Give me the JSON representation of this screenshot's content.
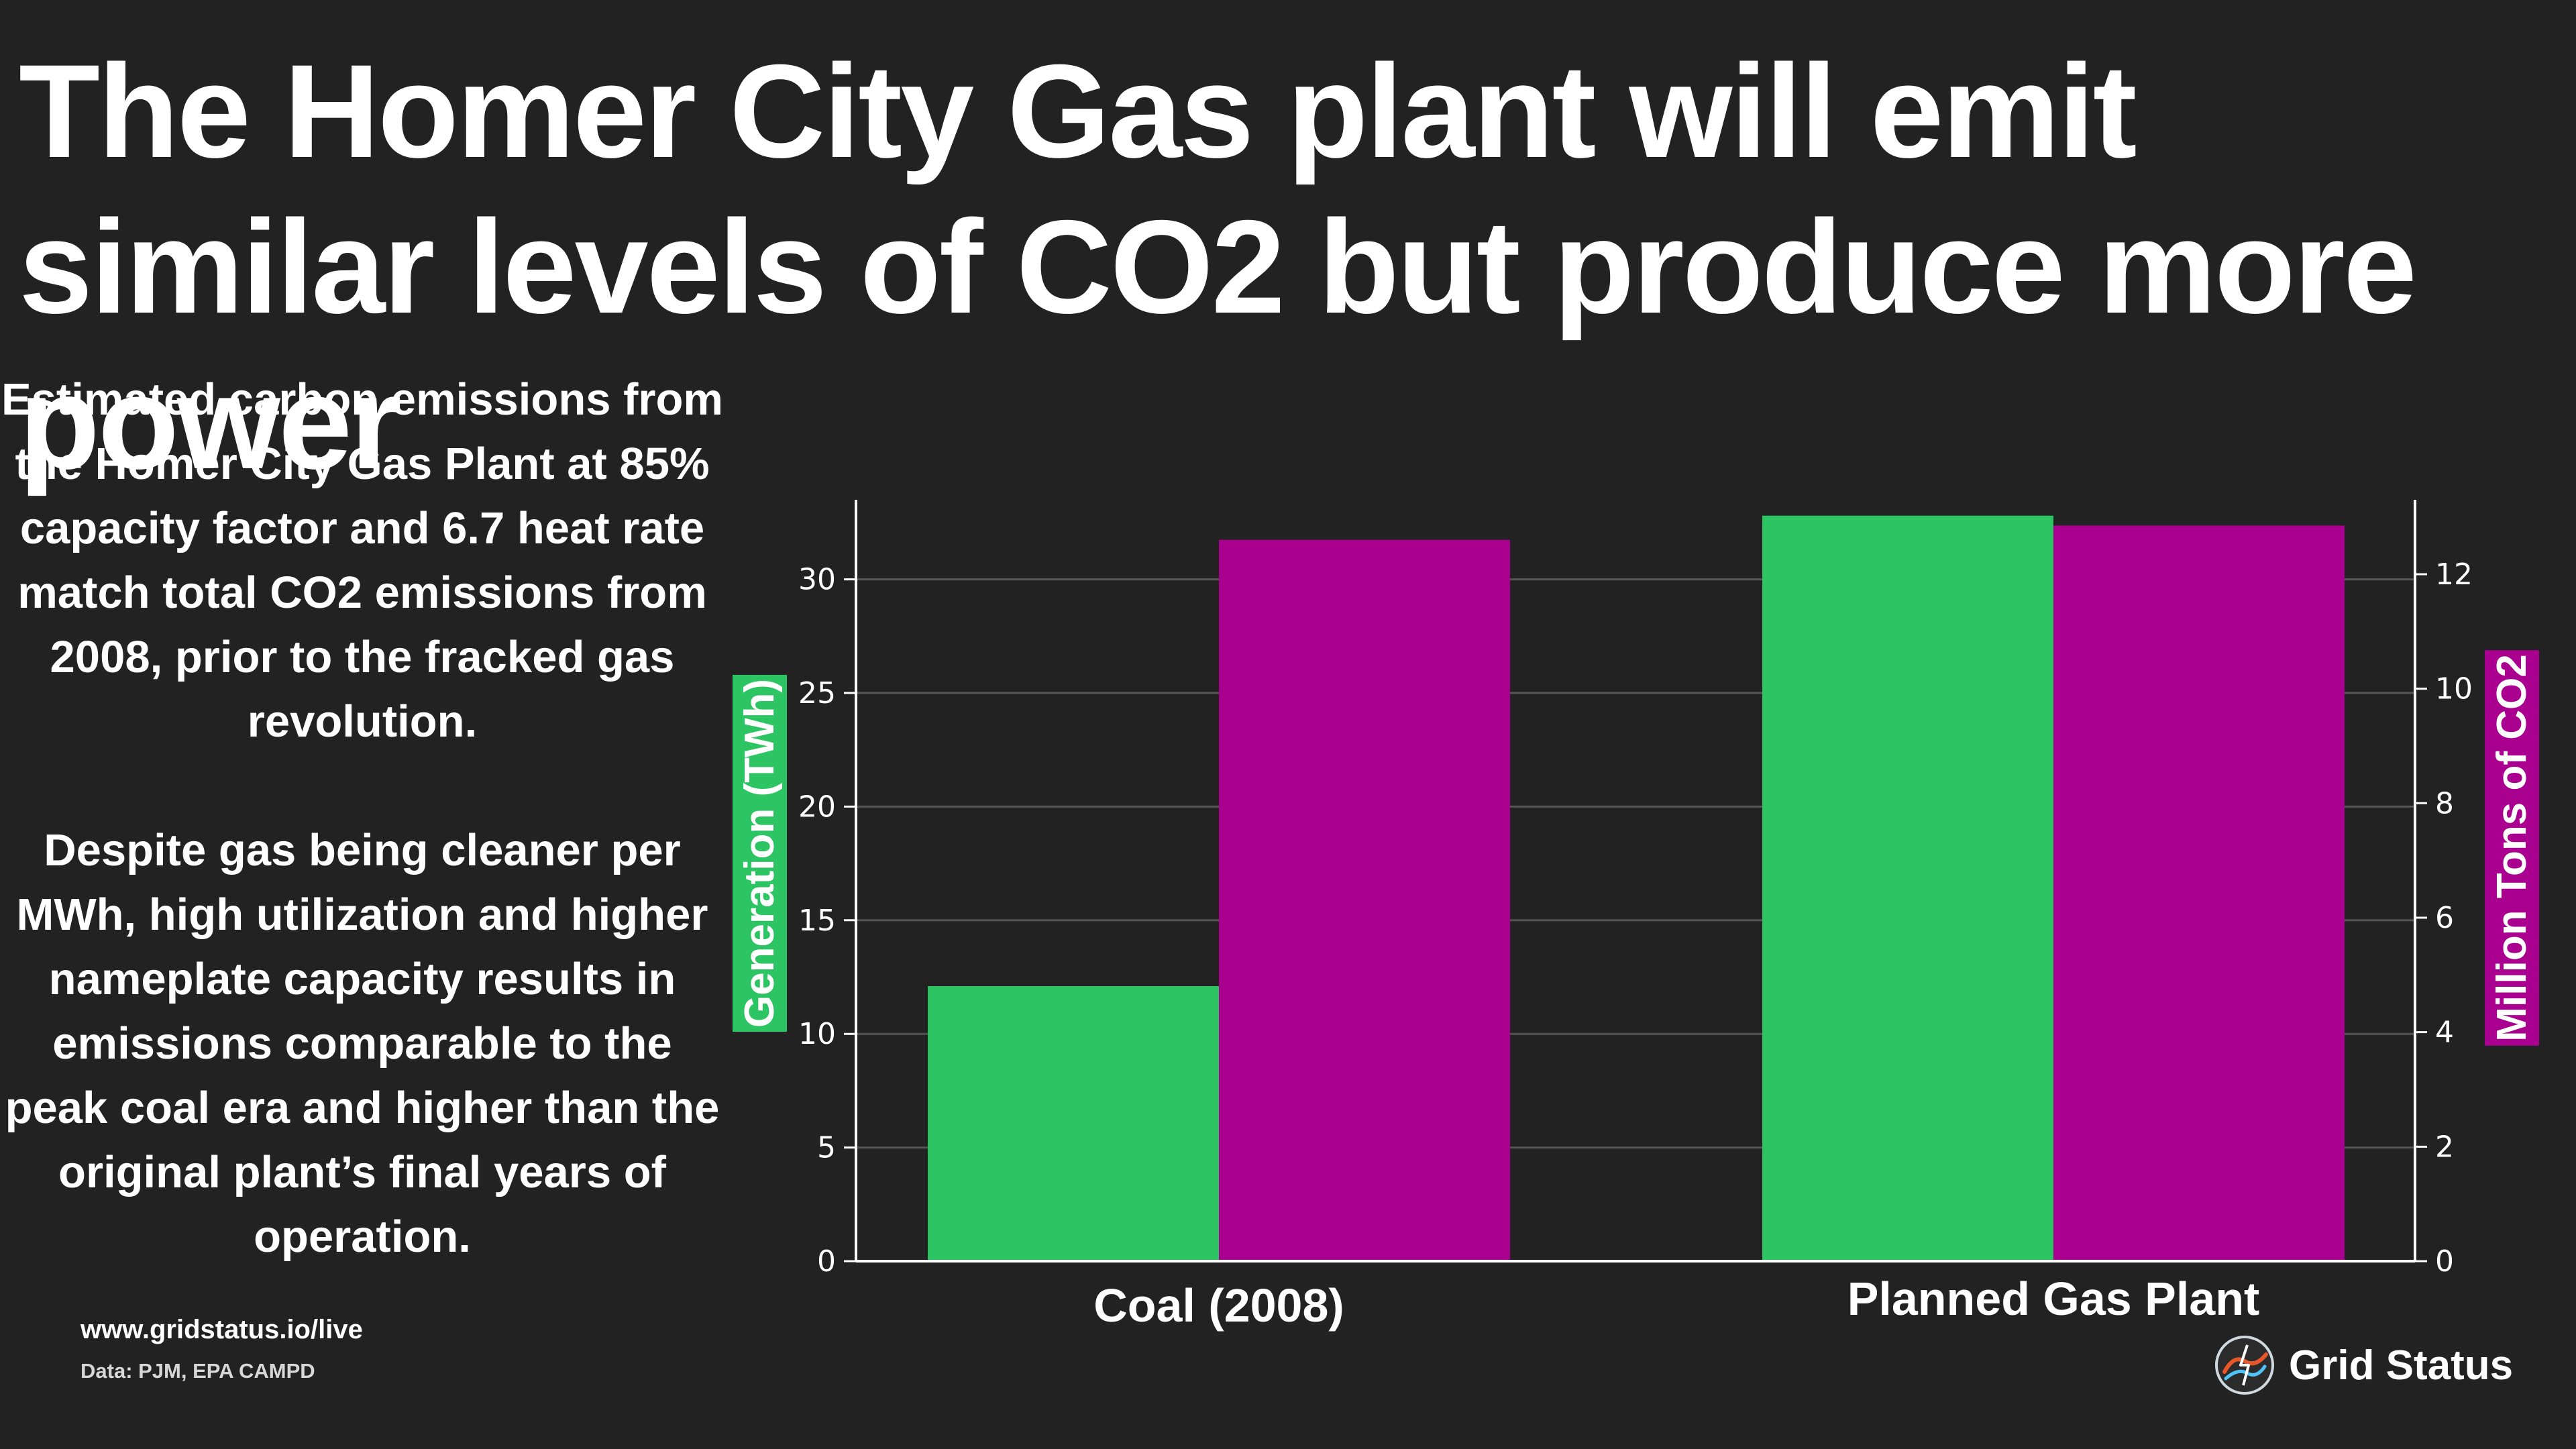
{
  "title": "The Homer City Gas plant will emit similar levels of CO2 but produce more power",
  "description": {
    "paragraph1": "Estimated carbon emissions from the Homer City Gas Plant at 85% capacity factor and 6.7 heat rate match total CO2 emissions from 2008, prior to the fracked gas revolution.",
    "paragraph2": "Despite gas being cleaner per MWh, high utilization and higher nameplate capacity results in emissions comparable to the peak coal era and higher than the original plant’s final years of operation."
  },
  "footer": {
    "url": "www.gridstatus.io/live",
    "source": "Data: PJM, EPA CAMPD",
    "brand": "Grid Status",
    "brand_icon": "grid-status-logo-icon"
  },
  "colors": {
    "background": "#222222",
    "generation": "#2DC563",
    "co2": "#A9008F",
    "grid": "#555555",
    "text": "#ffffff"
  },
  "chart_data": {
    "type": "bar",
    "categories": [
      "Coal (2008)",
      "Planned Gas Plant"
    ],
    "series": [
      {
        "name": "Generation (TWh)",
        "axis": "left",
        "values": [
          12.1,
          32.8
        ]
      },
      {
        "name": "Million Tons of CO2",
        "axis": "right",
        "values": [
          12.6,
          12.85
        ]
      }
    ],
    "y_left": {
      "label": "Generation (TWh)",
      "ylim": [
        0,
        33.5
      ],
      "ticks": [
        0,
        5,
        10,
        15,
        20,
        25,
        30
      ],
      "tick_labels": [
        "0",
        "5",
        "10",
        "15",
        "20",
        "25",
        "30"
      ]
    },
    "y_right": {
      "label": "Million Tons of CO2",
      "ylim": [
        0,
        13.3
      ],
      "ticks": [
        0,
        2,
        4,
        6,
        8,
        10,
        12
      ],
      "tick_labels": [
        "0",
        "2",
        "4",
        "6",
        "8",
        "10",
        "12"
      ]
    },
    "grid": true,
    "legend": "none"
  }
}
